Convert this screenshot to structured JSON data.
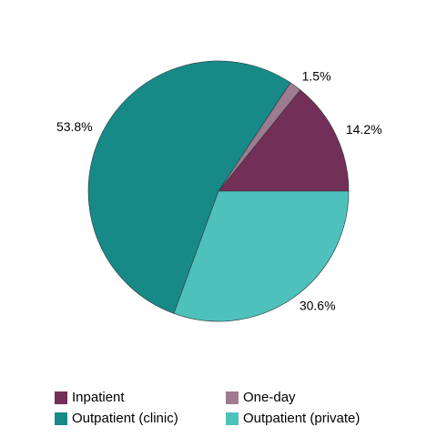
{
  "chart_data": {
    "type": "pie",
    "categories": [
      "Inpatient",
      "One-day",
      "Outpatient (clinic)",
      "Outpatient (private)"
    ],
    "values": [
      14.2,
      1.5,
      53.8,
      30.6
    ],
    "value_labels": [
      "14.2%",
      "1.5%",
      "53.8%",
      "30.6%"
    ],
    "colors": [
      "#722f57",
      "#9e7b90",
      "#178a87",
      "#4fc1bd"
    ],
    "legend": "bottom"
  }
}
